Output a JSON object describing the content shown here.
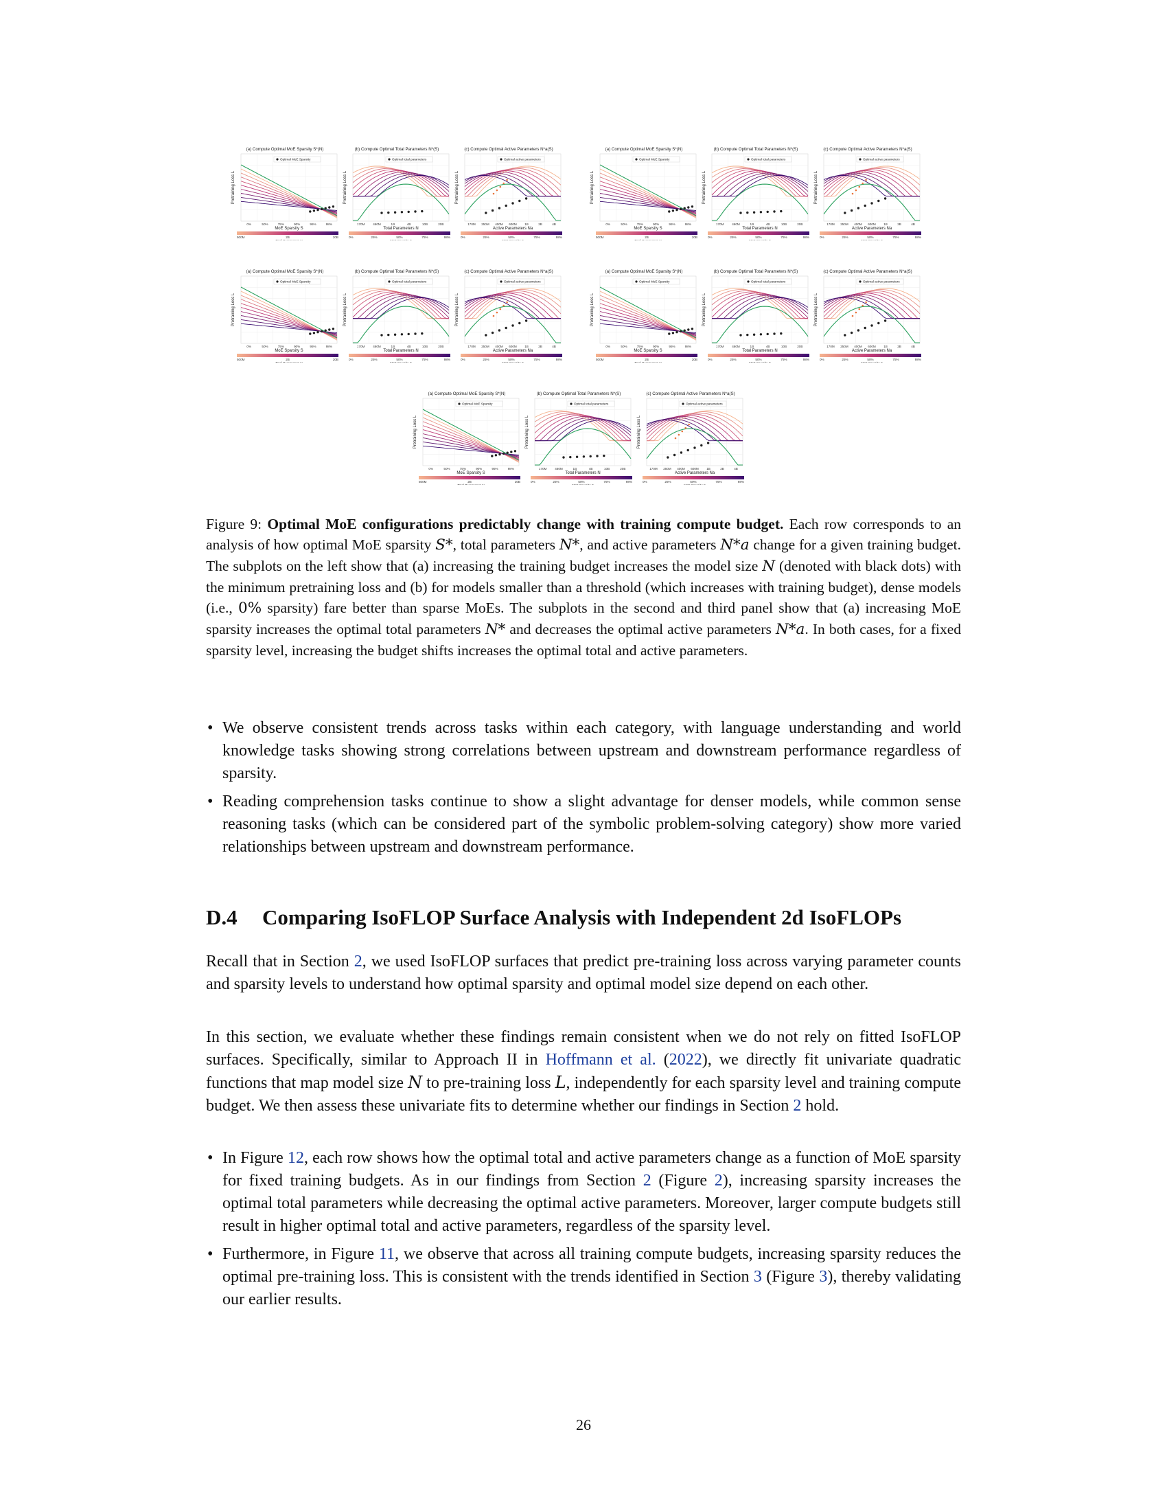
{
  "figure": {
    "panel_titles": [
      "(a) Compute Optimal MoE Sparsity S*(N)",
      "(b) Compute Optimal Total Parameters N*(S)",
      "(c) Compute Optimal Active Parameters N*a(S)"
    ],
    "legend": [
      "Optimal MoE Sparsity",
      "Optimal total parameters",
      "Optimal active parameters"
    ],
    "ylabel": "Pretraining Loss L",
    "xlabels": [
      "MoE Sparsity S",
      "Total Parameters N",
      "Active Parameters Na"
    ],
    "colorbar_labels": [
      "Total Parameters N",
      "MoE Sparsity S",
      "MoE Sparsity S"
    ],
    "sparsity_ticks": [
      "0%",
      "50%",
      "75%",
      "90%",
      "95%",
      "98%"
    ],
    "param_ticks": [
      "170M",
      "460M",
      "1B",
      "4B",
      "10B",
      "20B"
    ],
    "active_ticks": [
      "170M",
      "250M",
      "400M",
      "600M",
      "1B",
      "2B",
      "4B"
    ],
    "cbar_total_ticks": [
      "500M",
      "2B",
      "20B"
    ],
    "cbar_sparsity_ticks": [
      "0%",
      "25%",
      "50%",
      "75%",
      "98%"
    ],
    "colors": {
      "light": "#f6b48f",
      "mid": "#c03a76",
      "dark": "#3b0f70",
      "green": "#2ca25f",
      "dot": "#222222",
      "optA": "#e8743b"
    }
  },
  "caption": {
    "label": "Figure 9:",
    "bold": "Optimal MoE configurations predictably change with training compute budget.",
    "text_1": " Each row corresponds to an analysis of how optimal MoE sparsity ",
    "sym_s": "S*",
    "text_2": ", total parameters ",
    "sym_n": "N*",
    "text_3": ", and active parameters ",
    "sym_na": "N*a",
    "text_4": " change for a given training budget. The subplots on the left show that (a) increasing the training budget increases the model size ",
    "sym_n2": "N",
    "text_5": " (denoted with black dots) with the minimum pretraining loss and (b) for models smaller than a threshold (which increases with training budget), dense models (i.e., ",
    "sym_zero": "0%",
    "text_6": " sparsity) fare better than sparse MoEs. The subplots in the second and third panel show that (a) increasing MoE sparsity increases the optimal total parameters ",
    "sym_n3": "N*",
    "text_7": " and decreases the optimal active parameters ",
    "sym_na2": "N*a",
    "text_8": ". In both cases, for a fixed sparsity level, increasing the budget shifts increases the optimal total and active parameters."
  },
  "bullets_1": [
    "We observe consistent trends across tasks within each category, with language understanding and world knowledge tasks showing strong correlations between upstream and downstream performance regardless of sparsity.",
    "Reading comprehension tasks continue to show a slight advantage for denser models, while common sense reasoning tasks (which can be considered part of the symbolic problem-solving category) show more varied relationships between upstream and downstream performance."
  ],
  "section": {
    "number": "D.4",
    "title": "Comparing IsoFLOP Surface Analysis with Independent 2d IsoFLOPs"
  },
  "para_1": {
    "a": "Recall that in Section ",
    "ref": "2",
    "b": ", we used IsoFLOP surfaces that predict pre-training loss across varying parameter counts and sparsity levels to understand how optimal sparsity and optimal model size depend on each other."
  },
  "para_2": {
    "a": "In this section, we evaluate whether these findings remain consistent when we do not rely on fitted IsoFLOP surfaces. Specifically, similar to Approach II in ",
    "cite": "Hoffmann et al.",
    "b": " (",
    "year": "2022",
    "c": "), we directly fit univariate quadratic functions that map model size ",
    "sym_n": "N",
    "d": " to pre-training loss ",
    "sym_l": "L",
    "e": ", independently for each sparsity level and training compute budget. We then assess these univariate fits to determine whether our findings in Section ",
    "ref": "2",
    "f": " hold."
  },
  "bullets_2": {
    "one": {
      "a": "In Figure ",
      "ref1": "12",
      "b": ", each row shows how the optimal total and active parameters change as a function of MoE sparsity for fixed training budgets. As in our findings from Section ",
      "ref2": "2",
      "c": " (Figure ",
      "ref3": "2",
      "d": "), increasing sparsity increases the optimal total parameters while decreasing the optimal active parameters. Moreover, larger compute budgets still result in higher optimal total and active parameters, regardless of the sparsity level."
    },
    "two": {
      "a": "Furthermore, in Figure ",
      "ref1": "11",
      "b": ", we observe that across all training compute budgets, increasing sparsity reduces the optimal pre-training loss. This is consistent with the trends identified in Section ",
      "ref2": "3",
      "c": " (Figure ",
      "ref3": "3",
      "d": "), thereby validating our earlier results."
    }
  },
  "page_number": "26"
}
